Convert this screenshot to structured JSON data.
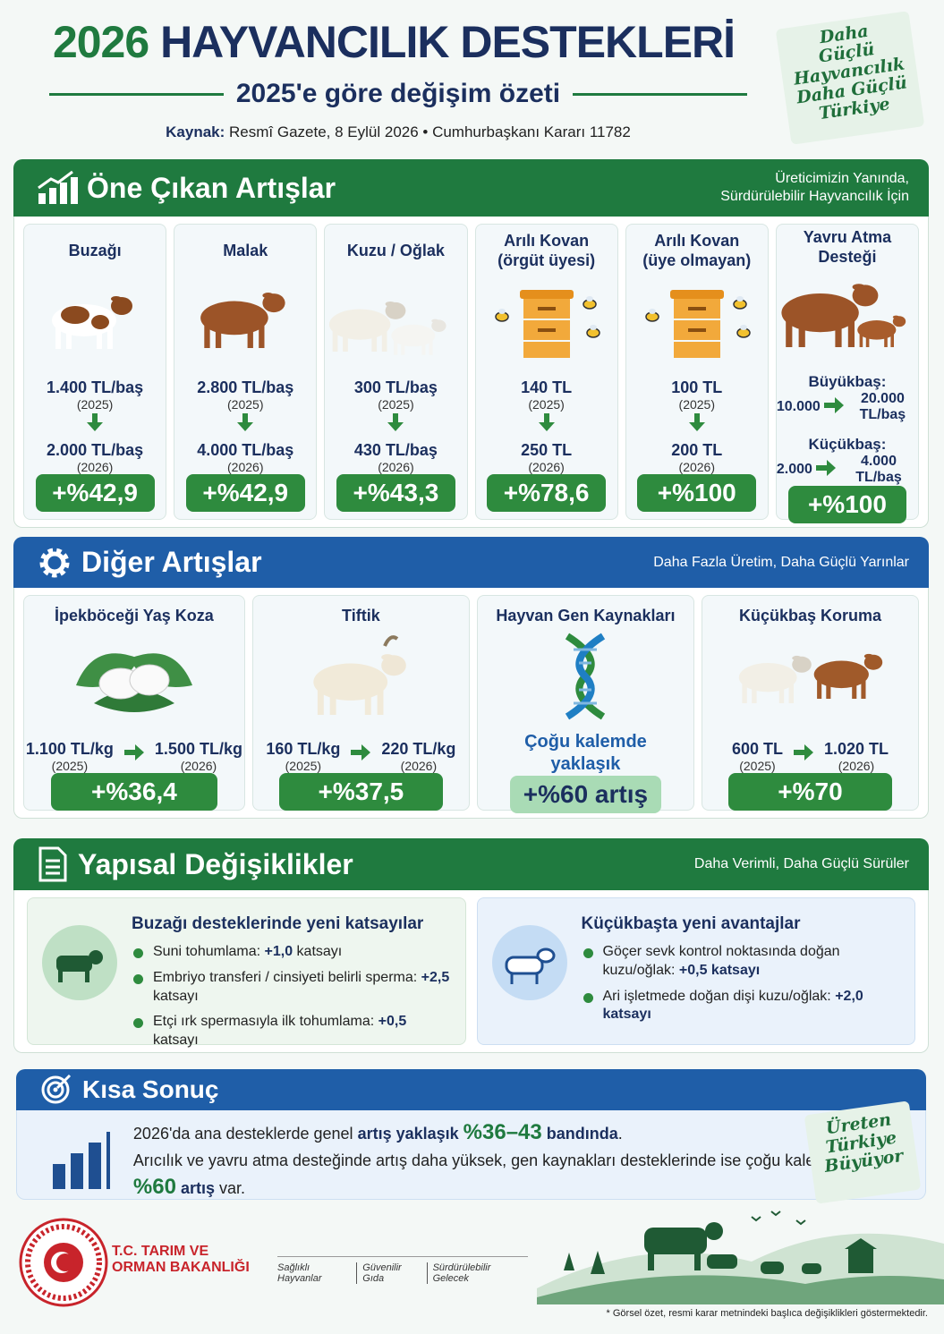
{
  "header": {
    "title_year": "2026",
    "title": "HAYVANCILIK DESTEKLERİ",
    "subtitle": "2025'e göre değişim özeti",
    "source_label": "Kaynak:",
    "source_text": "Resmî Gazete, 8 Eylül 2026 • Cumhurbaşkanı Kararı 11782",
    "slogan": [
      "Daha",
      "Güçlü",
      "Hayvancılık",
      "Daha Güçlü",
      "Türkiye"
    ]
  },
  "highlights": {
    "title": "Öne Çıkan Artışlar",
    "tagline": [
      "Üreticimizin Yanında,",
      "Sürdürülebilir Hayvancılık İçin"
    ],
    "cards": [
      {
        "name": [
          "Buzağı"
        ],
        "old": "1.400 TL/baş",
        "old_year": "(2025)",
        "new": "2.000 TL/baş",
        "new_year": "(2026)",
        "change": "+%42,9"
      },
      {
        "name": [
          "Malak"
        ],
        "old": "2.800 TL/baş",
        "old_year": "(2025)",
        "new": "4.000 TL/baş",
        "new_year": "(2026)",
        "change": "+%42,9"
      },
      {
        "name": [
          "Kuzu / Oğlak"
        ],
        "old": "300 TL/baş",
        "old_year": "(2025)",
        "new": "430 TL/baş",
        "new_year": "(2026)",
        "change": "+%43,3"
      },
      {
        "name": [
          "Arılı Kovan",
          "(örgüt üyesi)"
        ],
        "old": "140 TL",
        "old_year": "(2025)",
        "new": "250 TL",
        "new_year": "(2026)",
        "change": "+%78,6"
      },
      {
        "name": [
          "Arılı Kovan",
          "(üye olmayan)"
        ],
        "old": "100 TL",
        "old_year": "(2025)",
        "new": "200 TL",
        "new_year": "(2026)",
        "change": "+%100"
      },
      {
        "name": [
          "Yavru Atma Desteği"
        ],
        "groups": [
          {
            "label": "Büyükbaş:",
            "from": "10.000",
            "to": "20.000 TL/baş"
          },
          {
            "label": "Küçükbaş:",
            "from": "2.000",
            "to": "4.000 TL/baş"
          }
        ],
        "change": "+%100"
      }
    ]
  },
  "other": {
    "title": "Diğer Artışlar",
    "tagline": "Daha Fazla Üretim, Daha Güçlü Yarınlar",
    "cards": [
      {
        "name": "İpekböceği Yaş Koza",
        "old": "1.100 TL/kg",
        "old_year": "(2025)",
        "new": "1.500 TL/kg",
        "new_year": "(2026)",
        "change": "+%36,4"
      },
      {
        "name": "Tiftik",
        "old": "160 TL/kg",
        "old_year": "(2025)",
        "new": "220 TL/kg",
        "new_year": "(2026)",
        "change": "+%37,5"
      },
      {
        "name": "Hayvan Gen Kaynakları",
        "note": [
          "Çoğu kalemde",
          "yaklaşık"
        ],
        "change": "+%60 artış"
      },
      {
        "name": "Küçükbaş Koruma",
        "old": "600 TL",
        "old_year": "(2025)",
        "new": "1.020 TL",
        "new_year": "(2026)",
        "change": "+%70"
      }
    ]
  },
  "structural": {
    "title": "Yapısal Değişiklikler",
    "tagline": "Daha Verimli, Daha Güçlü Sürüler",
    "panels": [
      {
        "title": "Buzağı desteklerinde yeni katsayılar",
        "items": [
          [
            {
              "text": "Suni tohumlama: ",
              "style": "normal"
            },
            {
              "text": "+1,0",
              "style": "bold"
            },
            {
              "text": " katsayı",
              "style": "normal"
            }
          ],
          [
            {
              "text": "Embriyo transferi / cinsiyeti belirli sperma: ",
              "style": "normal"
            },
            {
              "text": "+2,5",
              "style": "bold"
            },
            {
              "text": " katsayı",
              "style": "normal"
            }
          ],
          [
            {
              "text": "Etçi ırk spermasıyla ilk tohumlama: ",
              "style": "normal"
            },
            {
              "text": "+0,5",
              "style": "bold"
            },
            {
              "text": " katsayı",
              "style": "normal"
            }
          ]
        ]
      },
      {
        "title": "Küçükbaşta yeni avantajlar",
        "items": [
          [
            {
              "text": "Göçer sevk kontrol noktasında doğan kuzu/oğlak: ",
              "style": "normal"
            },
            {
              "text": "+0,5 katsayı",
              "style": "bold"
            }
          ],
          [
            {
              "text": "Ari işletmede doğan dişi kuzu/oğlak: ",
              "style": "normal"
            },
            {
              "text": "+2,0 katsayı",
              "style": "bold"
            }
          ]
        ]
      }
    ]
  },
  "summary": {
    "title": "Kısa Sonuç",
    "lines": [
      [
        {
          "text": "2026'da ana desteklerde genel ",
          "style": "normal"
        },
        {
          "text": "artış yaklaşık ",
          "style": "bold"
        },
        {
          "text": "%36–43",
          "style": "big"
        },
        {
          "text": " bandında",
          "style": "bold"
        },
        {
          "text": ".",
          "style": "normal"
        }
      ],
      [
        {
          "text": "Arıcılık ve yavru atma desteğinde artış daha yüksek, gen kaynakları desteklerinde ise çoğu kalemde yaklaşık ",
          "style": "normal"
        },
        {
          "text": "%60",
          "style": "big"
        },
        {
          "text": " artış",
          "style": "bold"
        },
        {
          "text": " var.",
          "style": "normal"
        }
      ]
    ],
    "slogan": [
      "Üreten",
      "Türkiye",
      "Büyüyor"
    ]
  },
  "footer": {
    "ministry": [
      "T.C. TARIM VE",
      "ORMAN BAKANLIĞI"
    ],
    "tags": [
      "Sağlıklı Hayvanlar",
      "Güvenilir Gıda",
      "Sürdürülebilir Gelecek"
    ],
    "note": "* Görsel özet, resmi karar metnindeki başlıca değişiklikleri göstermektedir."
  }
}
